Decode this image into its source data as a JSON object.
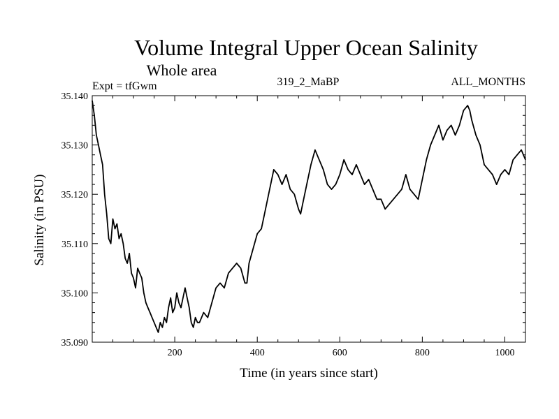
{
  "header": {
    "title": "Volume Integral Upper Ocean Salinity",
    "subtitle": "Whole area",
    "experiment": "Expt = tfGwm",
    "run": "319_2_MaBP",
    "months": "ALL_MONTHS"
  },
  "chart_data": {
    "type": "line",
    "title": "Volume Integral Upper Ocean Salinity",
    "subtitle": "Whole area",
    "xlabel": "Time (in years since start)",
    "ylabel": "Salinity (in PSU)",
    "xlim": [
      0,
      1050
    ],
    "ylim": [
      35.09,
      35.14
    ],
    "x_ticks": [
      {
        "value": 200,
        "label": "200"
      },
      {
        "value": 400,
        "label": "400"
      },
      {
        "value": 600,
        "label": "600"
      },
      {
        "value": 800,
        "label": "800"
      },
      {
        "value": 1000,
        "label": "1000"
      }
    ],
    "y_ticks": [
      {
        "value": 35.09,
        "label": "35.090"
      },
      {
        "value": 35.1,
        "label": "35.100"
      },
      {
        "value": 35.11,
        "label": "35.110"
      },
      {
        "value": 35.12,
        "label": "35.120"
      },
      {
        "value": 35.13,
        "label": "35.130"
      },
      {
        "value": 35.14,
        "label": "35.140"
      }
    ],
    "grid": false,
    "series": [
      {
        "name": "salinity",
        "x": [
          0,
          5,
          10,
          15,
          20,
          25,
          30,
          35,
          40,
          45,
          50,
          55,
          60,
          65,
          70,
          75,
          80,
          85,
          90,
          95,
          100,
          105,
          110,
          115,
          120,
          125,
          130,
          135,
          140,
          145,
          150,
          155,
          160,
          165,
          170,
          175,
          180,
          185,
          190,
          195,
          200,
          205,
          210,
          215,
          220,
          225,
          230,
          235,
          240,
          245,
          250,
          255,
          260,
          270,
          280,
          290,
          300,
          310,
          320,
          330,
          340,
          350,
          360,
          370,
          375,
          380,
          390,
          400,
          410,
          420,
          430,
          440,
          450,
          460,
          470,
          480,
          490,
          500,
          505,
          510,
          520,
          530,
          540,
          550,
          560,
          570,
          580,
          590,
          600,
          610,
          620,
          630,
          640,
          650,
          660,
          670,
          680,
          690,
          700,
          710,
          720,
          730,
          740,
          750,
          760,
          770,
          780,
          790,
          800,
          810,
          820,
          830,
          840,
          850,
          860,
          870,
          880,
          890,
          900,
          910,
          915,
          920,
          930,
          940,
          950,
          960,
          970,
          980,
          990,
          1000,
          1010,
          1020,
          1030,
          1040,
          1050
        ],
        "values": [
          35.139,
          35.136,
          35.132,
          35.13,
          35.128,
          35.126,
          35.12,
          35.116,
          35.111,
          35.11,
          35.115,
          35.113,
          35.114,
          35.111,
          35.112,
          35.11,
          35.107,
          35.106,
          35.108,
          35.104,
          35.103,
          35.101,
          35.105,
          35.104,
          35.103,
          35.1,
          35.098,
          35.097,
          35.096,
          35.095,
          35.094,
          35.093,
          35.092,
          35.094,
          35.093,
          35.095,
          35.094,
          35.097,
          35.099,
          35.096,
          35.097,
          35.1,
          35.098,
          35.097,
          35.099,
          35.101,
          35.099,
          35.097,
          35.094,
          35.093,
          35.095,
          35.094,
          35.094,
          35.096,
          35.095,
          35.098,
          35.101,
          35.102,
          35.101,
          35.104,
          35.105,
          35.106,
          35.105,
          35.102,
          35.102,
          35.106,
          35.109,
          35.112,
          35.113,
          35.117,
          35.121,
          35.125,
          35.124,
          35.122,
          35.124,
          35.121,
          35.12,
          35.117,
          35.116,
          35.118,
          35.122,
          35.126,
          35.129,
          35.127,
          35.125,
          35.122,
          35.121,
          35.122,
          35.124,
          35.127,
          35.125,
          35.124,
          35.126,
          35.124,
          35.122,
          35.123,
          35.121,
          35.119,
          35.119,
          35.117,
          35.118,
          35.119,
          35.12,
          35.121,
          35.124,
          35.121,
          35.12,
          35.119,
          35.123,
          35.127,
          35.13,
          35.132,
          35.134,
          35.131,
          35.133,
          35.134,
          35.132,
          35.134,
          35.137,
          35.138,
          35.137,
          35.135,
          35.132,
          35.13,
          35.126,
          35.125,
          35.124,
          35.122,
          35.124,
          35.125,
          35.124,
          35.127,
          35.128,
          35.129,
          35.127
        ]
      }
    ]
  }
}
